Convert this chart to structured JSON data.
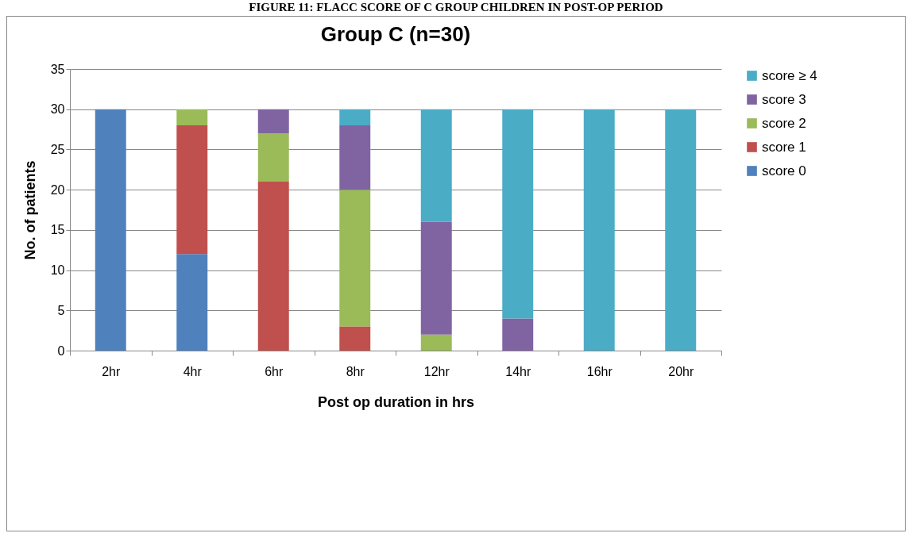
{
  "chart_data": {
    "type": "bar",
    "title": "Group C (n=30)",
    "xlabel": "Post op duration in hrs",
    "ylabel": "No. of patients",
    "annotations": [
      "FIGURE 11: FLACC SCORE OF C GROUP CHILDREN IN POST-OP PERIOD"
    ],
    "categories": [
      "2hr",
      "4hr",
      "6hr",
      "8hr",
      "12hr",
      "14hr",
      "16hr",
      "20hr"
    ],
    "stacked": true,
    "ylim": [
      0,
      35
    ],
    "yticks": [
      0,
      5,
      10,
      15,
      20,
      25,
      30,
      35
    ],
    "grid": "y",
    "legend": "right",
    "series": [
      {
        "name": "score 0",
        "color": "#4f81bd",
        "values": [
          30,
          12,
          0,
          0,
          0,
          0,
          0,
          0
        ]
      },
      {
        "name": "score 1",
        "color": "#c0504d",
        "values": [
          0,
          16,
          21,
          3,
          0,
          0,
          0,
          0
        ]
      },
      {
        "name": "score 2",
        "color": "#9bbb59",
        "values": [
          0,
          2,
          6,
          17,
          2,
          0,
          0,
          0
        ]
      },
      {
        "name": "score 3",
        "color": "#8064a2",
        "values": [
          0,
          0,
          3,
          8,
          14,
          4,
          0,
          0
        ]
      },
      {
        "name": "score ≥ 4",
        "color": "#4bacc6",
        "values": [
          0,
          0,
          0,
          2,
          14,
          26,
          30,
          30
        ]
      }
    ]
  }
}
